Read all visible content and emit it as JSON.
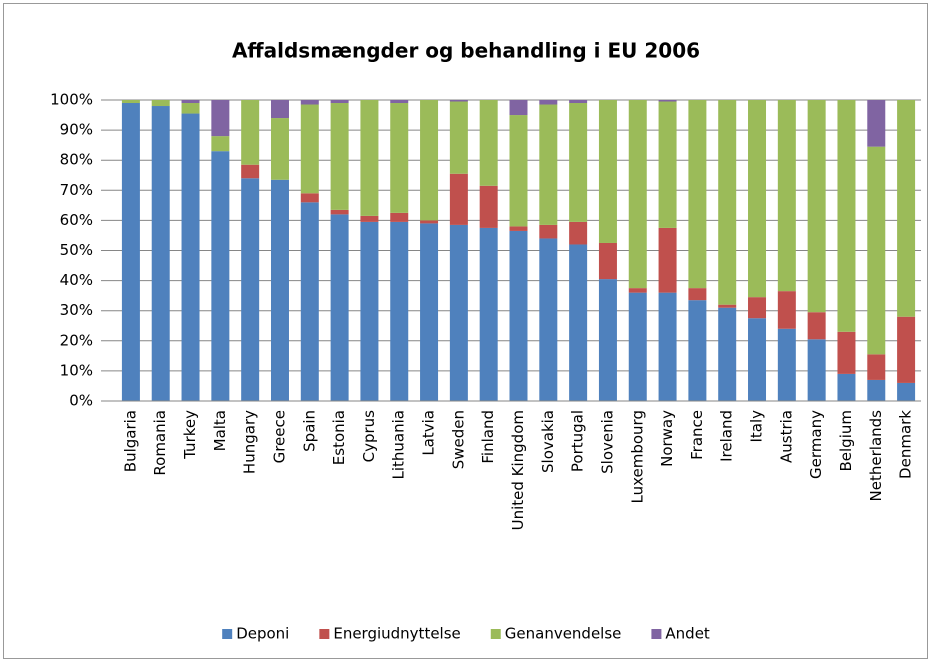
{
  "chart_data": {
    "type": "stacked_bar",
    "title": "Affaldsmængder og behandling i EU 2006",
    "categories": [
      "Bulgaria",
      "Romania",
      "Turkey",
      "Malta",
      "Hungary",
      "Greece",
      "Spain",
      "Estonia",
      "Cyprus",
      "Lithuania",
      "Latvia",
      "Sweden",
      "Finland",
      "United Kingdom",
      "Slovakia",
      "Portugal",
      "Slovenia",
      "Luxembourg",
      "Norway",
      "France",
      "Ireland",
      "Italy",
      "Austria",
      "Germany",
      "Belgium",
      "Netherlands",
      "Denmark"
    ],
    "series": [
      {
        "name": "Deponi",
        "color": "#4f81bd",
        "values": [
          99,
          98,
          95.5,
          83,
          74,
          73.5,
          66,
          62,
          59.5,
          59.5,
          59,
          58.5,
          57.5,
          56.5,
          54,
          52,
          40.5,
          36,
          36,
          33.5,
          31,
          27.5,
          24,
          20.5,
          9,
          7,
          6
        ]
      },
      {
        "name": "Energiudnyttelse",
        "color": "#c0504d",
        "values": [
          0,
          0,
          0,
          0,
          4.5,
          0,
          3,
          1.5,
          2,
          3,
          1,
          17,
          14,
          1.5,
          4.5,
          7.5,
          12,
          1.5,
          21.5,
          4,
          1,
          7,
          12.5,
          9,
          14,
          8.5,
          22
        ]
      },
      {
        "name": "Genanvendelse",
        "color": "#9bbb59",
        "values": [
          1,
          2,
          3.5,
          5,
          21.5,
          20.5,
          29.5,
          35.5,
          38.5,
          36.5,
          40,
          24,
          28.5,
          37,
          40,
          39.5,
          47.5,
          62.5,
          42,
          62.5,
          68,
          65.5,
          63.5,
          70.5,
          77,
          69,
          72
        ]
      },
      {
        "name": "Andet",
        "color": "#8064a2",
        "values": [
          0,
          0,
          1,
          12,
          0,
          6,
          1.5,
          1,
          0,
          1,
          0,
          0.5,
          0,
          5,
          1.5,
          1,
          0,
          0,
          0.5,
          0,
          0,
          0,
          0,
          0,
          0,
          15.5,
          0
        ]
      }
    ],
    "ylim": [
      0,
      100
    ],
    "yticks": [
      {
        "value": 0,
        "label": "0%"
      },
      {
        "value": 10,
        "label": "10%"
      },
      {
        "value": 20,
        "label": "20%"
      },
      {
        "value": 30,
        "label": "30%"
      },
      {
        "value": 40,
        "label": "40%"
      },
      {
        "value": 50,
        "label": "50%"
      },
      {
        "value": 60,
        "label": "60%"
      },
      {
        "value": 70,
        "label": "70%"
      },
      {
        "value": 80,
        "label": "80%"
      },
      {
        "value": 90,
        "label": "90%"
      },
      {
        "value": 100,
        "label": "100%"
      }
    ],
    "grid": true,
    "legend": "bottom"
  }
}
